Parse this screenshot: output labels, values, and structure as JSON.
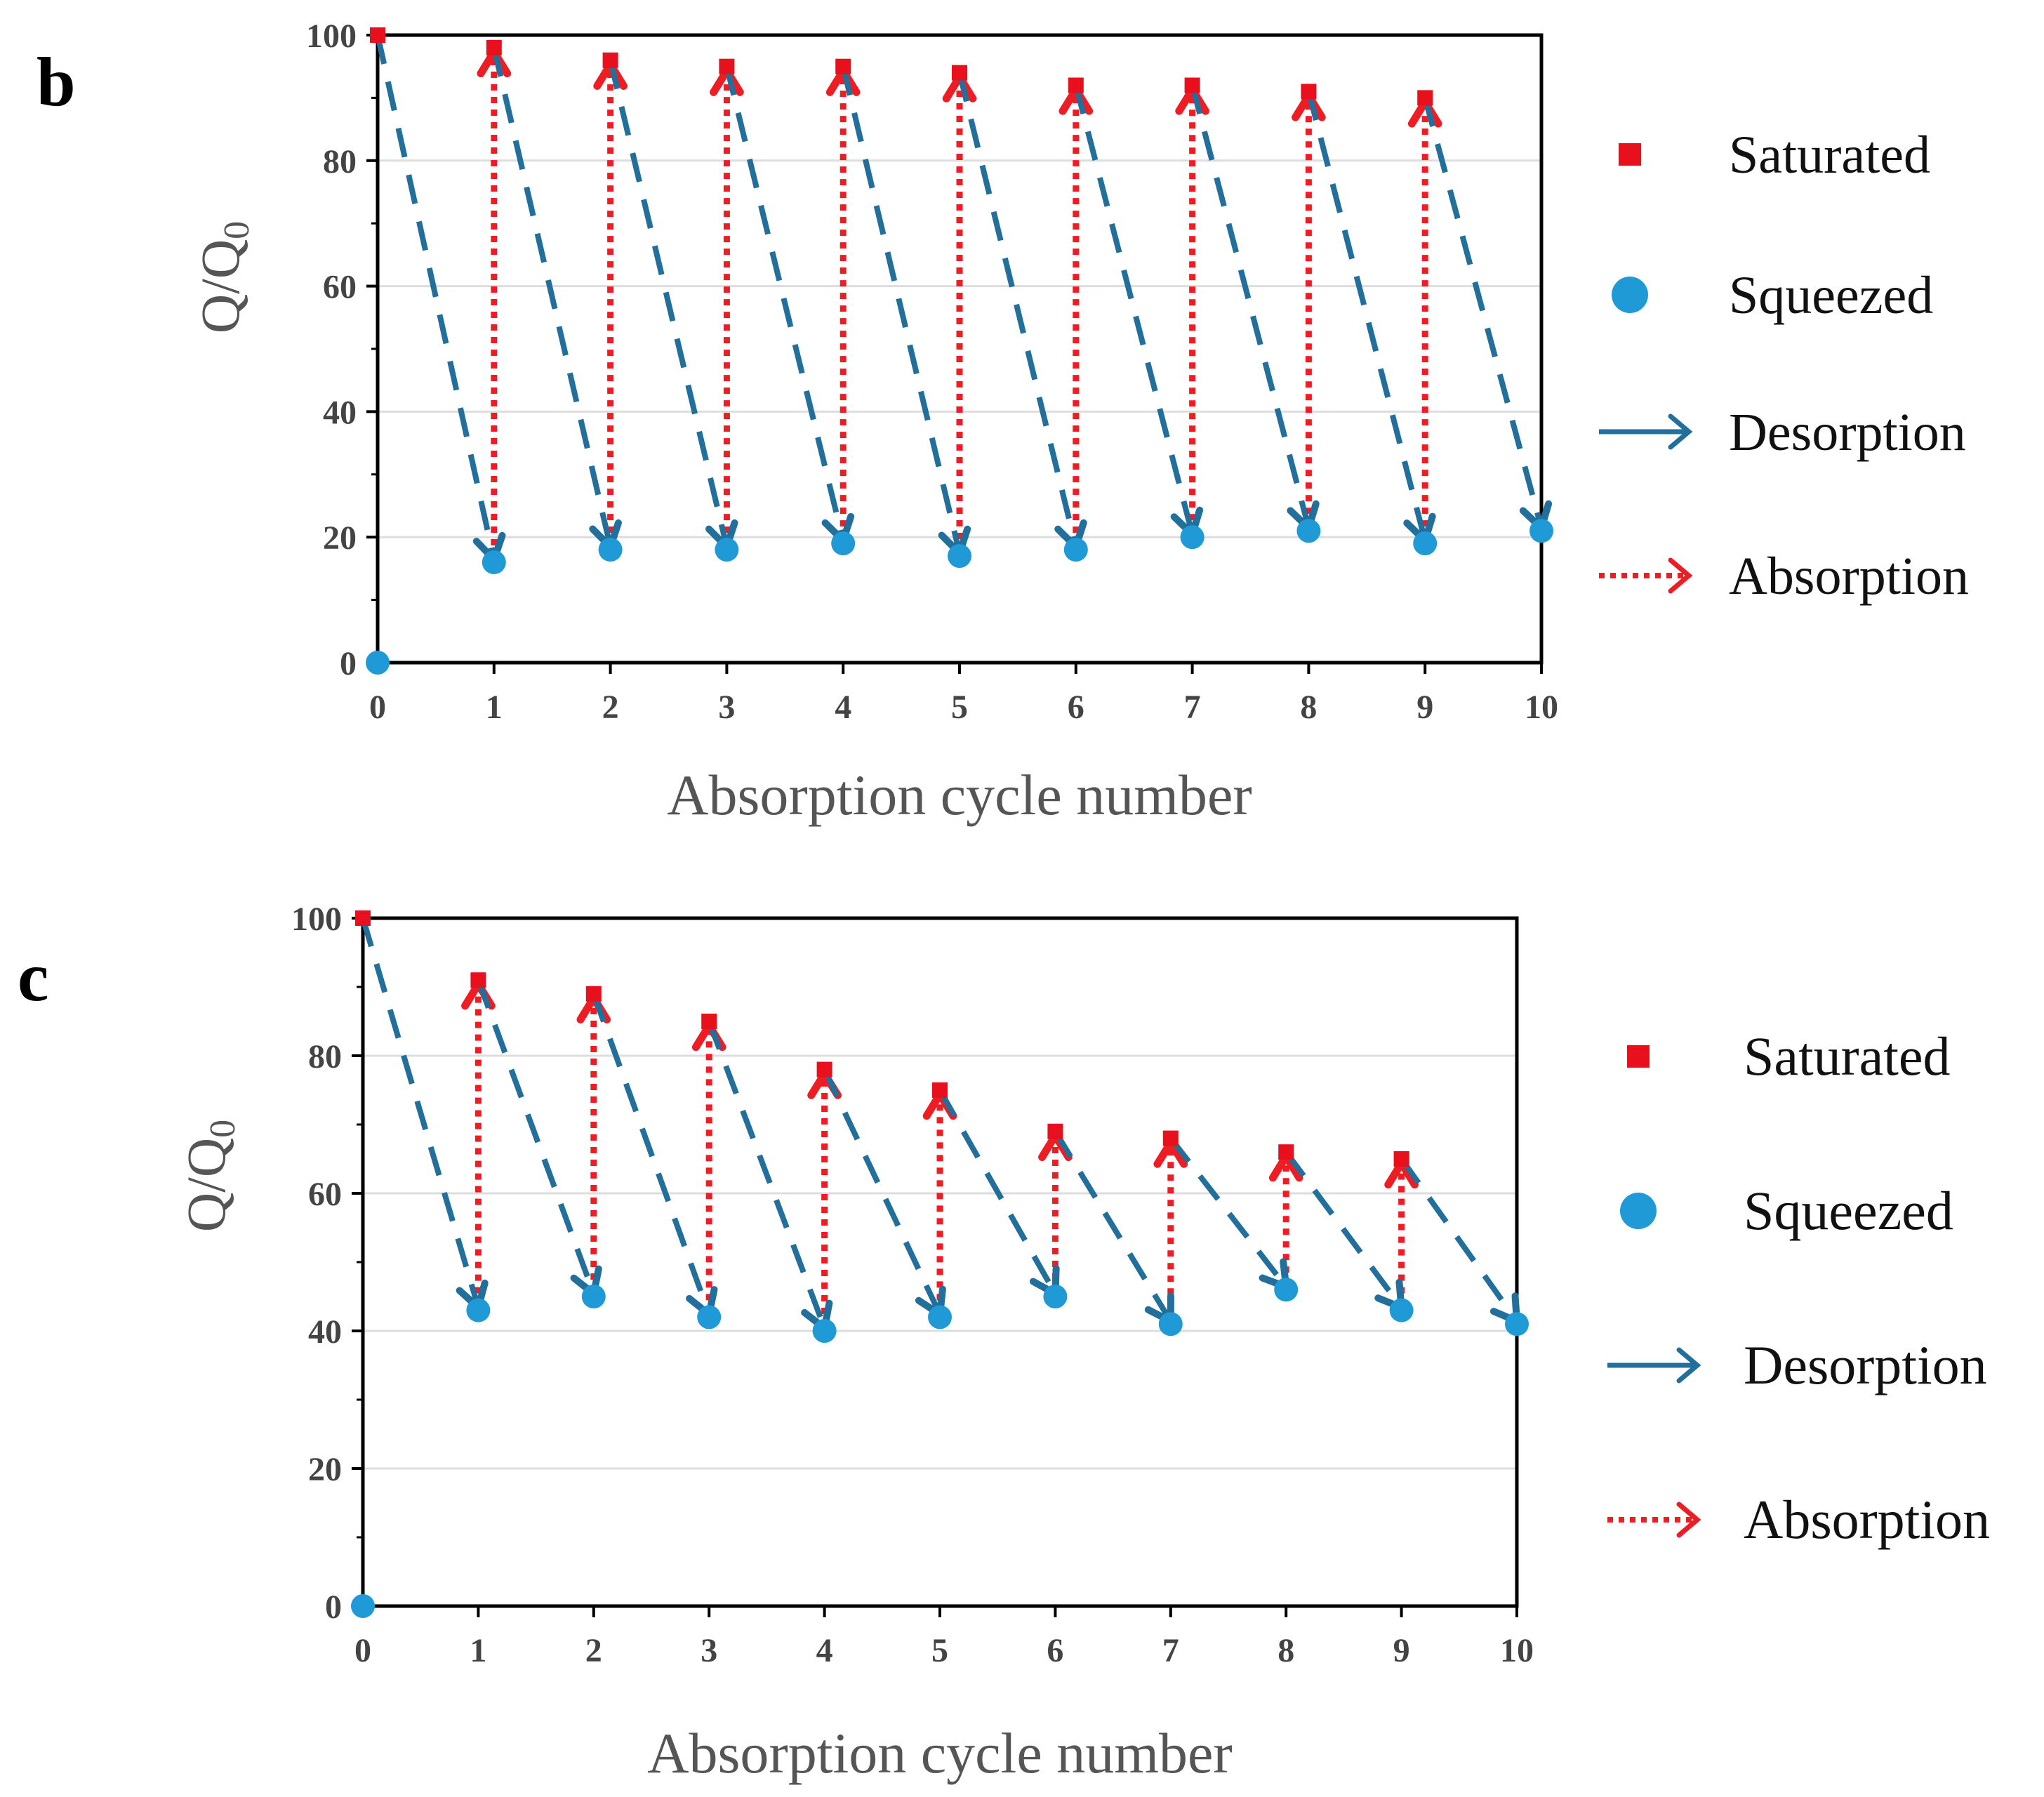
{
  "colors": {
    "saturated": "#e8101c",
    "squeezed": "#1f9ad6",
    "desorption": "#226f9b",
    "absorption": "#ef1c24",
    "grid": "#dddddd",
    "axis": "#000000"
  },
  "chart_data": [
    {
      "type": "scatter",
      "panel_label": "b",
      "xlabel": "Absorption cycle number",
      "ylabel": "Q/Q",
      "ylabel_subscript": "0",
      "xlim": [
        0,
        10
      ],
      "ylim": [
        0,
        100
      ],
      "x_ticks": [
        "0",
        "1",
        "2",
        "3",
        "4",
        "5",
        "6",
        "7",
        "8",
        "9",
        "10"
      ],
      "y_ticks": [
        "0",
        "20",
        "40",
        "60",
        "80",
        "100"
      ],
      "grid": true,
      "series": [
        {
          "name": "Saturated",
          "marker": "square",
          "x": [
            0,
            1,
            2,
            3,
            4,
            5,
            6,
            7,
            8,
            9
          ],
          "values": [
            100,
            98,
            96,
            95,
            95,
            94,
            92,
            92,
            91,
            90
          ]
        },
        {
          "name": "Squeezed",
          "marker": "circle",
          "x": [
            0,
            1,
            2,
            3,
            4,
            5,
            6,
            7,
            8,
            9,
            10
          ],
          "values": [
            0,
            16,
            18,
            18,
            19,
            17,
            18,
            20,
            21,
            19,
            21
          ]
        }
      ],
      "legend": {
        "position": "right",
        "items": [
          "Saturated",
          "Squeezed",
          "Desorption",
          "Absorption"
        ]
      }
    },
    {
      "type": "scatter",
      "panel_label": "c",
      "xlabel": "Absorption cycle number",
      "ylabel": "Q/Q",
      "ylabel_subscript": "0",
      "xlim": [
        0,
        10
      ],
      "ylim": [
        0,
        100
      ],
      "x_ticks": [
        "0",
        "1",
        "2",
        "3",
        "4",
        "5",
        "6",
        "7",
        "8",
        "9",
        "10"
      ],
      "y_ticks": [
        "0",
        "20",
        "40",
        "60",
        "80",
        "100"
      ],
      "grid": true,
      "series": [
        {
          "name": "Saturated",
          "marker": "square",
          "x": [
            0,
            1,
            2,
            3,
            4,
            5,
            6,
            7,
            8,
            9
          ],
          "values": [
            100,
            91,
            89,
            85,
            78,
            75,
            69,
            68,
            66,
            65
          ]
        },
        {
          "name": "Squeezed",
          "marker": "circle",
          "x": [
            0,
            1,
            2,
            3,
            4,
            5,
            6,
            7,
            8,
            9,
            10
          ],
          "values": [
            0,
            43,
            45,
            42,
            40,
            42,
            45,
            41,
            46,
            43,
            41
          ]
        }
      ],
      "legend": {
        "position": "right",
        "items": [
          "Saturated",
          "Squeezed",
          "Desorption",
          "Absorption"
        ]
      }
    }
  ]
}
